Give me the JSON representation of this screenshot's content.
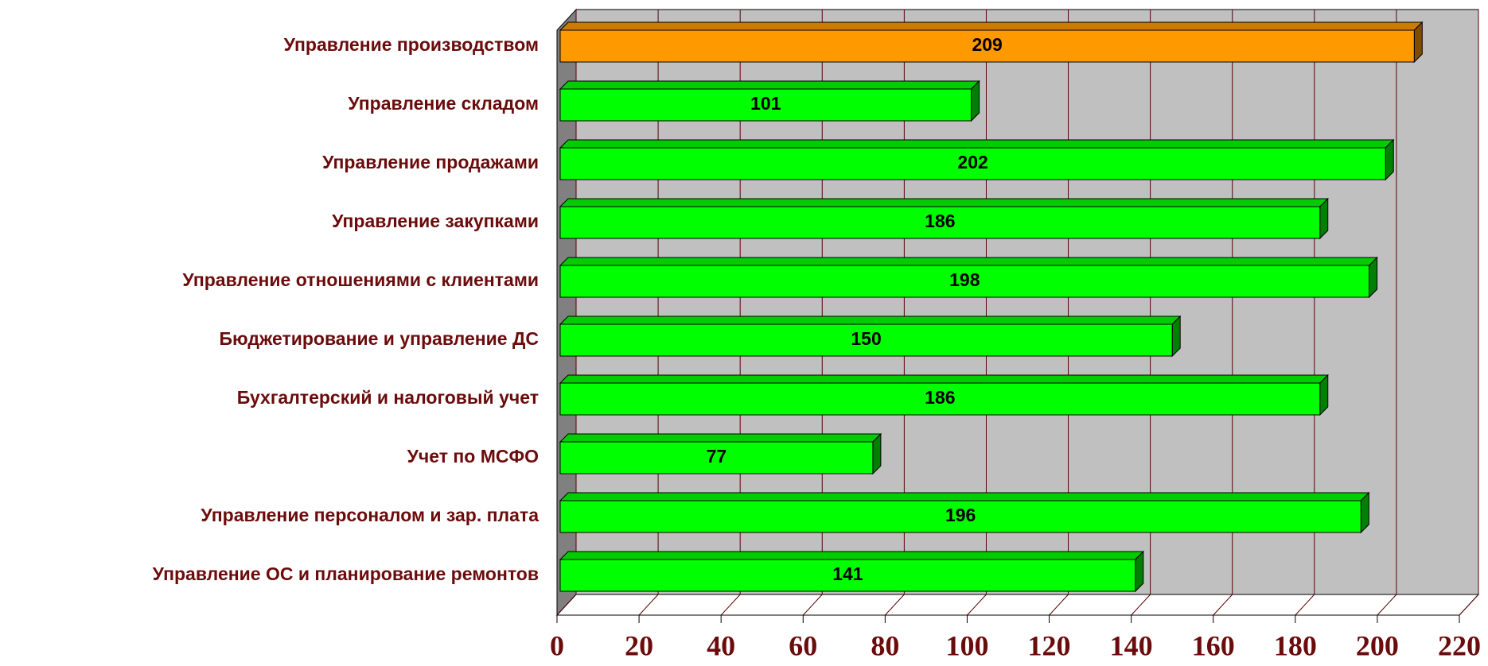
{
  "chart_data": {
    "type": "bar",
    "orientation": "horizontal",
    "categories": [
      "Управление производством",
      "Управление складом",
      "Управление продажами",
      "Управление закупками",
      "Управление отношениями с клиентами",
      "Бюджетирование и управление ДС",
      "Бухгалтерский и налоговый учет",
      "Учет по МСФО",
      "Управление персоналом и зар. плата",
      "Управление ОС и планирование ремонтов"
    ],
    "values": [
      209,
      101,
      202,
      186,
      198,
      150,
      186,
      77,
      196,
      141
    ],
    "colors": [
      "#ff9900",
      "#00ff00",
      "#00ff00",
      "#00ff00",
      "#00ff00",
      "#00ff00",
      "#00ff00",
      "#00ff00",
      "#00ff00",
      "#00ff00"
    ],
    "xlim": [
      0,
      220
    ],
    "xticks": [
      0,
      20,
      40,
      60,
      80,
      100,
      120,
      140,
      160,
      180,
      200,
      220
    ],
    "grid": true
  }
}
